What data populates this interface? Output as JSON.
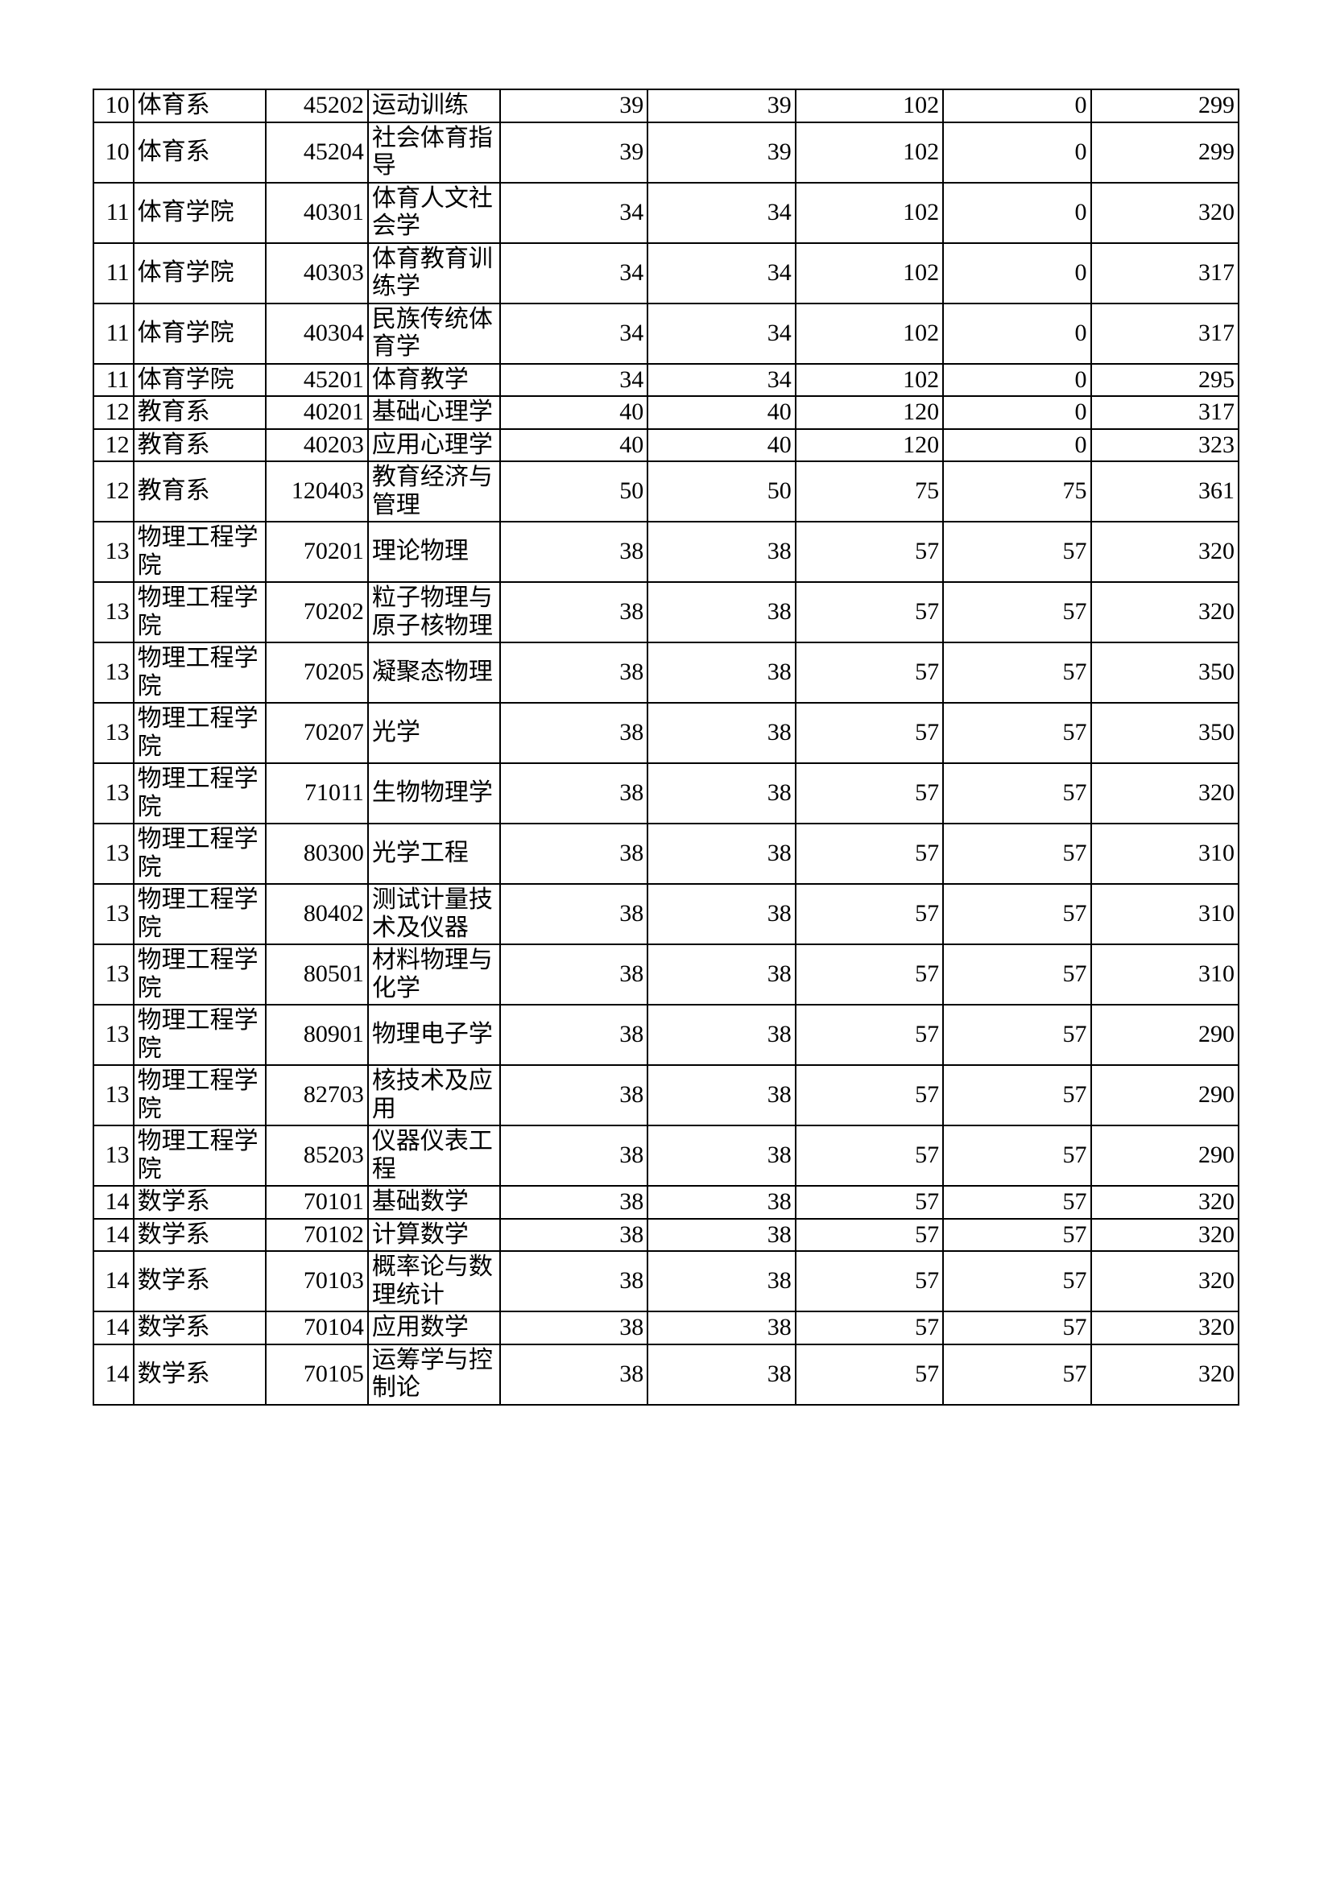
{
  "table": {
    "border_color": "#000000",
    "background_color": "#ffffff",
    "text_color": "#000000",
    "font_size_pt": 22,
    "columns": [
      {
        "key": "idx",
        "align": "right",
        "width": 46
      },
      {
        "key": "dept",
        "align": "left",
        "width": 152
      },
      {
        "key": "code",
        "align": "right",
        "width": 118
      },
      {
        "key": "major",
        "align": "left",
        "width": 152
      },
      {
        "key": "n1",
        "align": "right",
        "width": 170
      },
      {
        "key": "n2",
        "align": "right",
        "width": 170
      },
      {
        "key": "n3",
        "align": "right",
        "width": 170
      },
      {
        "key": "n4",
        "align": "right",
        "width": 170
      },
      {
        "key": "n5",
        "align": "right",
        "width": 170
      }
    ],
    "rows": [
      {
        "idx": "10",
        "dept": "体育系",
        "code": "45202",
        "major": "运动训练",
        "n1": "39",
        "n2": "39",
        "n3": "102",
        "n4": "0",
        "n5": "299"
      },
      {
        "idx": "10",
        "dept": "体育系",
        "code": "45204",
        "major": "社会体育指导",
        "n1": "39",
        "n2": "39",
        "n3": "102",
        "n4": "0",
        "n5": "299"
      },
      {
        "idx": "11",
        "dept": "体育学院",
        "code": "40301",
        "major": "体育人文社会学",
        "n1": "34",
        "n2": "34",
        "n3": "102",
        "n4": "0",
        "n5": "320"
      },
      {
        "idx": "11",
        "dept": "体育学院",
        "code": "40303",
        "major": "体育教育训练学",
        "n1": "34",
        "n2": "34",
        "n3": "102",
        "n4": "0",
        "n5": "317"
      },
      {
        "idx": "11",
        "dept": "体育学院",
        "code": "40304",
        "major": "民族传统体育学",
        "n1": "34",
        "n2": "34",
        "n3": "102",
        "n4": "0",
        "n5": "317"
      },
      {
        "idx": "11",
        "dept": "体育学院",
        "code": "45201",
        "major": "体育教学",
        "n1": "34",
        "n2": "34",
        "n3": "102",
        "n4": "0",
        "n5": "295"
      },
      {
        "idx": "12",
        "dept": "教育系",
        "code": "40201",
        "major": "基础心理学",
        "n1": "40",
        "n2": "40",
        "n3": "120",
        "n4": "0",
        "n5": "317"
      },
      {
        "idx": "12",
        "dept": "教育系",
        "code": "40203",
        "major": "应用心理学",
        "n1": "40",
        "n2": "40",
        "n3": "120",
        "n4": "0",
        "n5": "323"
      },
      {
        "idx": "12",
        "dept": "教育系",
        "code": "120403",
        "major": "教育经济与管理",
        "n1": "50",
        "n2": "50",
        "n3": "75",
        "n4": "75",
        "n5": "361"
      },
      {
        "idx": "13",
        "dept": "物理工程学院",
        "code": "70201",
        "major": "理论物理",
        "n1": "38",
        "n2": "38",
        "n3": "57",
        "n4": "57",
        "n5": "320"
      },
      {
        "idx": "13",
        "dept": "物理工程学院",
        "code": "70202",
        "major": "粒子物理与原子核物理",
        "n1": "38",
        "n2": "38",
        "n3": "57",
        "n4": "57",
        "n5": "320"
      },
      {
        "idx": "13",
        "dept": "物理工程学院",
        "code": "70205",
        "major": "凝聚态物理",
        "n1": "38",
        "n2": "38",
        "n3": "57",
        "n4": "57",
        "n5": "350"
      },
      {
        "idx": "13",
        "dept": "物理工程学院",
        "code": "70207",
        "major": "光学",
        "n1": "38",
        "n2": "38",
        "n3": "57",
        "n4": "57",
        "n5": "350"
      },
      {
        "idx": "13",
        "dept": "物理工程学院",
        "code": "71011",
        "major": "生物物理学",
        "n1": "38",
        "n2": "38",
        "n3": "57",
        "n4": "57",
        "n5": "320"
      },
      {
        "idx": "13",
        "dept": "物理工程学院",
        "code": "80300",
        "major": "光学工程",
        "n1": "38",
        "n2": "38",
        "n3": "57",
        "n4": "57",
        "n5": "310"
      },
      {
        "idx": "13",
        "dept": "物理工程学院",
        "code": "80402",
        "major": "测试计量技术及仪器",
        "n1": "38",
        "n2": "38",
        "n3": "57",
        "n4": "57",
        "n5": "310"
      },
      {
        "idx": "13",
        "dept": "物理工程学院",
        "code": "80501",
        "major": "材料物理与化学",
        "n1": "38",
        "n2": "38",
        "n3": "57",
        "n4": "57",
        "n5": "310"
      },
      {
        "idx": "13",
        "dept": "物理工程学院",
        "code": "80901",
        "major": "物理电子学",
        "n1": "38",
        "n2": "38",
        "n3": "57",
        "n4": "57",
        "n5": "290"
      },
      {
        "idx": "13",
        "dept": "物理工程学院",
        "code": "82703",
        "major": "核技术及应用",
        "n1": "38",
        "n2": "38",
        "n3": "57",
        "n4": "57",
        "n5": "290"
      },
      {
        "idx": "13",
        "dept": "物理工程学院",
        "code": "85203",
        "major": "仪器仪表工程",
        "n1": "38",
        "n2": "38",
        "n3": "57",
        "n4": "57",
        "n5": "290"
      },
      {
        "idx": "14",
        "dept": "数学系",
        "code": "70101",
        "major": "基础数学",
        "n1": "38",
        "n2": "38",
        "n3": "57",
        "n4": "57",
        "n5": "320"
      },
      {
        "idx": "14",
        "dept": "数学系",
        "code": "70102",
        "major": "计算数学",
        "n1": "38",
        "n2": "38",
        "n3": "57",
        "n4": "57",
        "n5": "320"
      },
      {
        "idx": "14",
        "dept": "数学系",
        "code": "70103",
        "major": "概率论与数理统计",
        "n1": "38",
        "n2": "38",
        "n3": "57",
        "n4": "57",
        "n5": "320"
      },
      {
        "idx": "14",
        "dept": "数学系",
        "code": "70104",
        "major": "应用数学",
        "n1": "38",
        "n2": "38",
        "n3": "57",
        "n4": "57",
        "n5": "320"
      },
      {
        "idx": "14",
        "dept": "数学系",
        "code": "70105",
        "major": "运筹学与控制论",
        "n1": "38",
        "n2": "38",
        "n3": "57",
        "n4": "57",
        "n5": "320"
      }
    ]
  }
}
